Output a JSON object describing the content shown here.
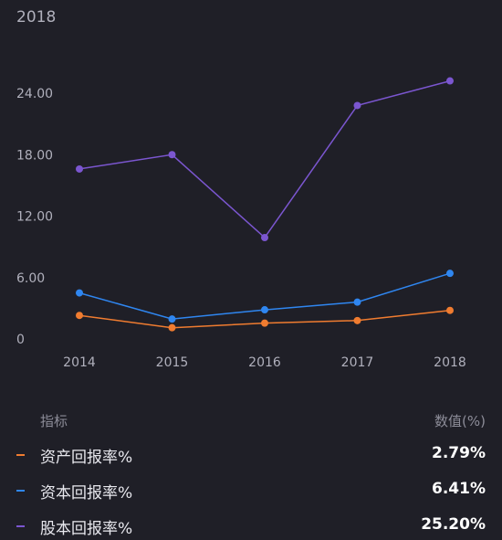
{
  "chart_data": {
    "type": "line",
    "title": "2018",
    "categories": [
      "2014",
      "2015",
      "2016",
      "2017",
      "2018"
    ],
    "y_ticks": [
      "0",
      "6.00",
      "12.00",
      "18.00",
      "24.00"
    ],
    "ylim": [
      0,
      24
    ],
    "grid": false,
    "series": [
      {
        "name": "资产回报率%",
        "color": "#f07c30",
        "values": [
          2.3,
          1.1,
          1.55,
          1.8,
          2.79
        ]
      },
      {
        "name": "资本回报率%",
        "color": "#2f86f0",
        "values": [
          4.5,
          1.95,
          2.85,
          3.6,
          6.41
        ]
      },
      {
        "name": "股本回报率%",
        "color": "#7b56d0",
        "values": [
          16.6,
          18.0,
          9.9,
          22.8,
          25.2
        ]
      }
    ]
  },
  "legend": {
    "header_left": "指标",
    "header_right": "数值(%)",
    "items": [
      {
        "label": "资产回报率%",
        "value": "2.79%",
        "color": "#f07c30"
      },
      {
        "label": "资本回报率%",
        "value": "6.41%",
        "color": "#2f86f0"
      },
      {
        "label": "股本回报率%",
        "value": "25.20%",
        "color": "#7b56d0"
      }
    ]
  }
}
